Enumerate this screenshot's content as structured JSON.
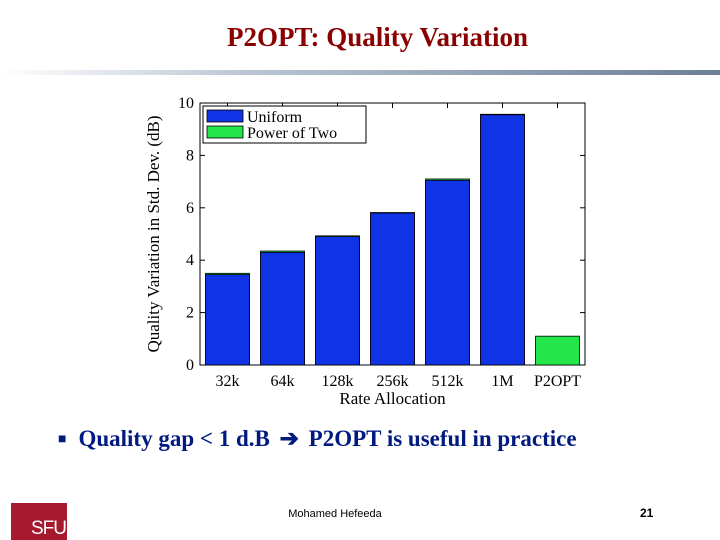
{
  "slide": {
    "title": "P2OPT: Quality Variation",
    "bullet_before": "Quality gap < 1 d.B ",
    "bullet_after": " P2OPT is useful in practice",
    "footer_name": "Mohamed  Hefeeda",
    "page_number": "21",
    "logo_text": "SFU"
  },
  "colors": {
    "title": "#8b0000",
    "uniform": "#1133e6",
    "power_of_two": "#22e64a",
    "bullet": "#001a80",
    "logo": "#a6192e"
  },
  "icons": {
    "bullet_marker": "square-bullet-icon",
    "arrow": "right-arrow-icon"
  },
  "chart_data": {
    "type": "bar",
    "categories": [
      "32k",
      "64k",
      "128k",
      "256k",
      "512k",
      "1M",
      "P2OPT"
    ],
    "series": [
      {
        "name": "Uniform",
        "values": [
          3.45,
          4.3,
          4.9,
          5.8,
          7.05,
          9.55,
          null
        ]
      },
      {
        "name": "Power of Two",
        "values": [
          3.5,
          4.35,
          4.93,
          5.82,
          7.1,
          9.57,
          1.1
        ]
      }
    ],
    "xlabel": "Rate Allocation",
    "ylabel": "Quality Variation in Std. Dev. (dB)",
    "ylim": [
      0,
      10
    ],
    "yticks": [
      0,
      2,
      4,
      6,
      8,
      10
    ],
    "legend_position": "top-left",
    "grid": false
  }
}
